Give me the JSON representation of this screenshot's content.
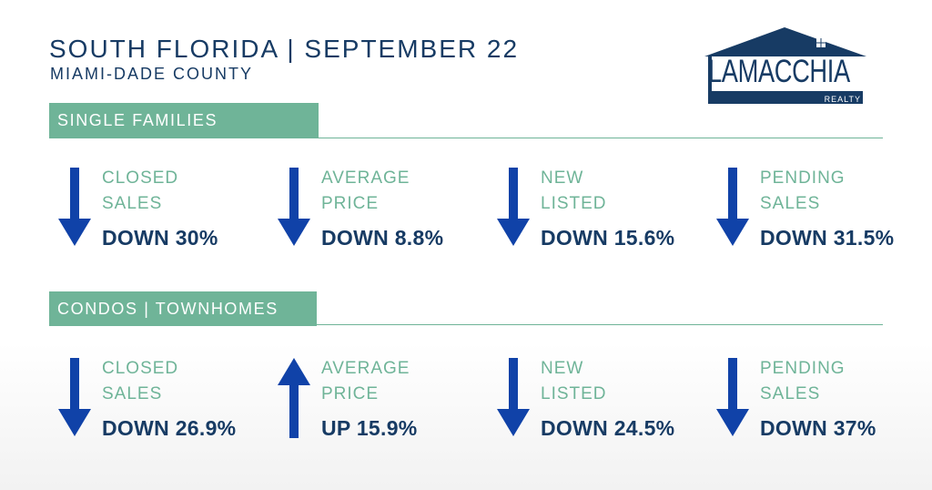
{
  "header": {
    "title": "SOUTH FLORIDA | SEPTEMBER 22",
    "subtitle": "MIAMI-DADE COUNTY"
  },
  "logo": {
    "name": "LAMACCHIA",
    "sub": "REALTY",
    "color": "#173b64"
  },
  "colors": {
    "navy": "#173b64",
    "green": "#6fb498",
    "arrow": "#1042a8"
  },
  "sections": [
    {
      "title": "SINGLE FAMILIES",
      "metrics": [
        {
          "label_line1": "CLOSED",
          "label_line2": "SALES",
          "value": "DOWN 30%",
          "direction": "down"
        },
        {
          "label_line1": "AVERAGE",
          "label_line2": "PRICE",
          "value": "DOWN 8.8%",
          "direction": "down"
        },
        {
          "label_line1": "NEW",
          "label_line2": "LISTED",
          "value": "DOWN 15.6%",
          "direction": "down"
        },
        {
          "label_line1": "PENDING",
          "label_line2": "SALES",
          "value": "DOWN 31.5%",
          "direction": "down"
        }
      ]
    },
    {
      "title": "CONDOS | TOWNHOMES",
      "metrics": [
        {
          "label_line1": "CLOSED",
          "label_line2": "SALES",
          "value": "DOWN 26.9%",
          "direction": "down"
        },
        {
          "label_line1": "AVERAGE",
          "label_line2": "PRICE",
          "value": "UP 15.9%",
          "direction": "up"
        },
        {
          "label_line1": "NEW",
          "label_line2": "LISTED",
          "value": "DOWN 24.5%",
          "direction": "down"
        },
        {
          "label_line1": "PENDING",
          "label_line2": "SALES",
          "value": "DOWN 37%",
          "direction": "down"
        }
      ]
    }
  ]
}
